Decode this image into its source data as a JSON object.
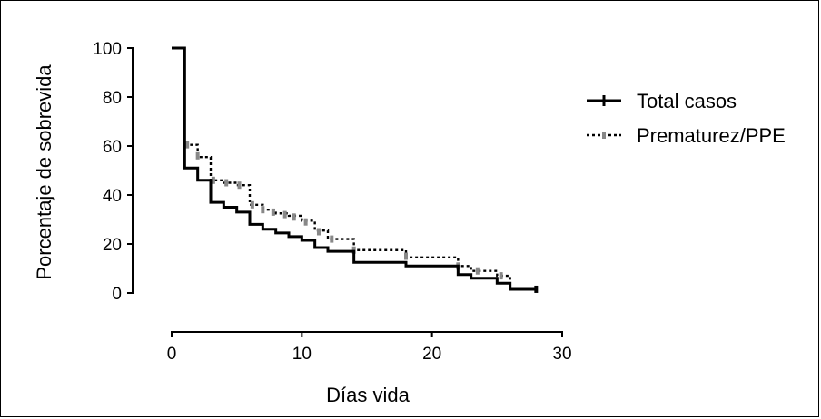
{
  "chart_data": {
    "type": "line",
    "subtype": "kaplan-meier-step",
    "title": "",
    "xlabel": "Días vida",
    "ylabel": "Porcentaje de sobrevida",
    "xlim": [
      0,
      30
    ],
    "ylim": [
      0,
      100
    ],
    "x_ticks": [
      "0",
      "10",
      "20",
      "30"
    ],
    "y_ticks": [
      "0",
      "20",
      "40",
      "60",
      "80",
      "100"
    ],
    "grid": false,
    "legend_position": "right",
    "series": [
      {
        "name": "Total casos",
        "style": "solid",
        "color": "#000000",
        "points": [
          [
            0,
            100
          ],
          [
            1,
            51
          ],
          [
            2,
            46
          ],
          [
            3,
            37
          ],
          [
            4,
            35
          ],
          [
            5,
            33
          ],
          [
            6,
            28
          ],
          [
            7,
            26
          ],
          [
            8,
            24.5
          ],
          [
            9,
            23
          ],
          [
            10,
            21.5
          ],
          [
            11,
            18.5
          ],
          [
            12,
            17
          ],
          [
            14,
            12.5
          ],
          [
            18,
            11
          ],
          [
            22,
            7.5
          ],
          [
            23,
            6
          ],
          [
            25,
            4
          ],
          [
            26,
            1.5
          ],
          [
            28,
            1.5
          ]
        ]
      },
      {
        "name": "Prematurez/PPE",
        "style": "dotted",
        "color": "#000000",
        "censor_color": "#888888",
        "points": [
          [
            1,
            60.5
          ],
          [
            2,
            55.5
          ],
          [
            3,
            46
          ],
          [
            4,
            45
          ],
          [
            5,
            44
          ],
          [
            6,
            36
          ],
          [
            7,
            34
          ],
          [
            8,
            32.5
          ],
          [
            9,
            31.5
          ],
          [
            10,
            29.5
          ],
          [
            11,
            25.5
          ],
          [
            12,
            22
          ],
          [
            14,
            17.5
          ],
          [
            18,
            14.5
          ],
          [
            22,
            11
          ],
          [
            23,
            9
          ],
          [
            25,
            7
          ],
          [
            26,
            1.5
          ],
          [
            28,
            1.5
          ]
        ],
        "censored": [
          [
            1.2,
            60.5
          ],
          [
            2,
            56
          ],
          [
            3.2,
            46
          ],
          [
            4.2,
            45
          ],
          [
            5.2,
            44
          ],
          [
            6.2,
            36
          ],
          [
            7,
            34
          ],
          [
            7.8,
            33
          ],
          [
            8.7,
            32
          ],
          [
            9.4,
            31
          ],
          [
            10.3,
            29
          ],
          [
            11.3,
            25
          ],
          [
            12.3,
            22
          ],
          [
            14,
            17.5
          ],
          [
            18,
            15
          ],
          [
            22,
            11
          ],
          [
            23.5,
            9
          ],
          [
            25.3,
            7
          ]
        ]
      }
    ]
  }
}
